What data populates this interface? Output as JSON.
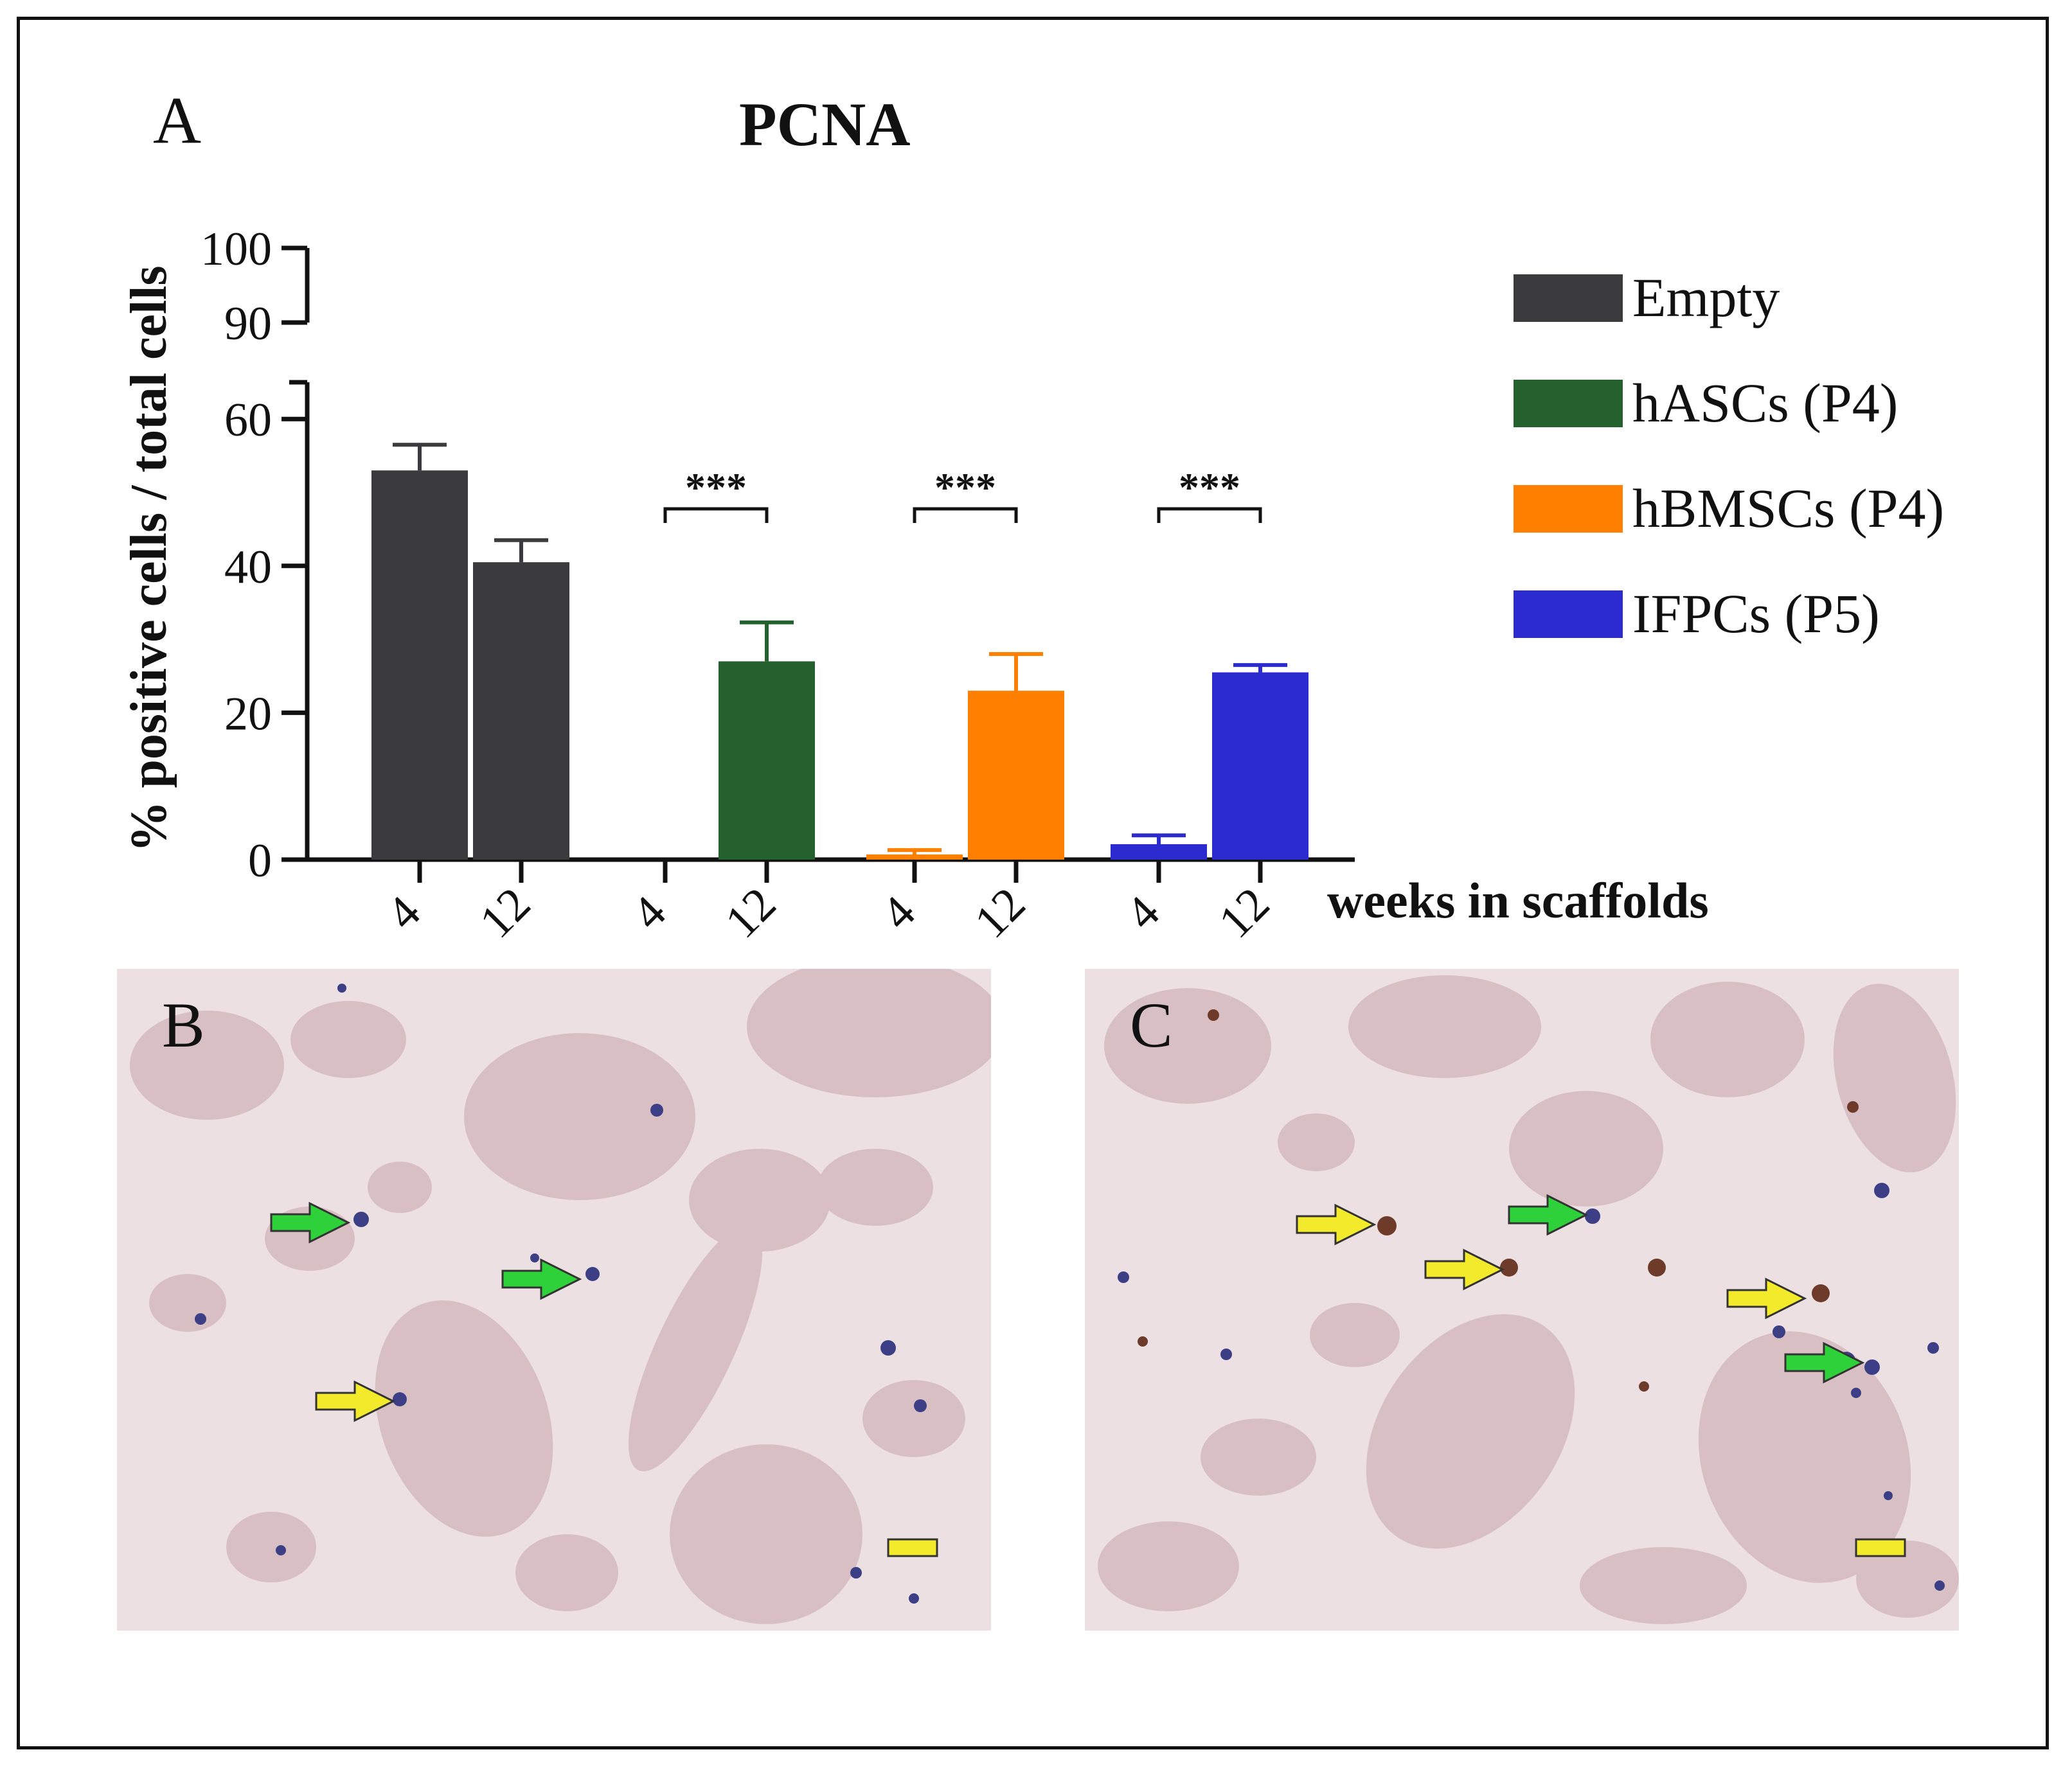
{
  "panels": {
    "a": "A",
    "b": "B",
    "c": "C"
  },
  "chart_data": {
    "type": "bar",
    "title": "PCNA",
    "ylabel": "% positive cells / total cells",
    "xlabel": "weeks in scaffolds",
    "ylim": [
      0,
      100
    ],
    "y_axis_break": [
      65,
      90
    ],
    "y_ticks": [
      0,
      20,
      40,
      60,
      90,
      100
    ],
    "groups": [
      {
        "name": "Empty",
        "color": "#3b3b3d",
        "categories": [
          "4",
          "12"
        ],
        "values": [
          53,
          40.5
        ],
        "errors": [
          3.5,
          3
        ],
        "significance": ""
      },
      {
        "name": "hASCs (P4)",
        "color": "#25612e",
        "categories": [
          "4",
          "12"
        ],
        "values": [
          0,
          27
        ],
        "errors": [
          0,
          5.3
        ],
        "significance": "***"
      },
      {
        "name": "hBMSCs (P4)",
        "color": "#ff8000",
        "categories": [
          "4",
          "12"
        ],
        "values": [
          0.7,
          23
        ],
        "errors": [
          0.6,
          5
        ],
        "significance": "***"
      },
      {
        "name": "IFPCs (P5)",
        "color": "#2b2bd0",
        "categories": [
          "4",
          "12"
        ],
        "values": [
          2.1,
          25.5
        ],
        "errors": [
          1.2,
          1
        ],
        "significance": "***"
      }
    ],
    "legend_position": "right",
    "grid": false
  }
}
